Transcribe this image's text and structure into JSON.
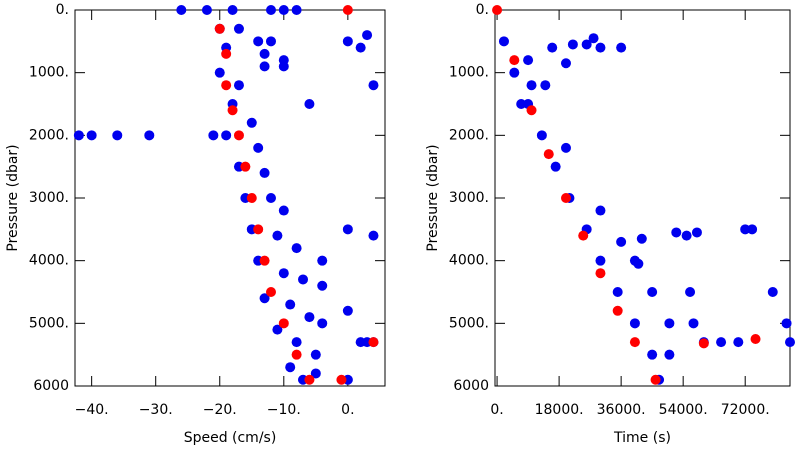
{
  "chart_data": [
    {
      "type": "scatter",
      "xlabel": "Speed (cm/s)",
      "ylabel": "Pressure (dbar)",
      "xlim": [
        -42.6,
        5.8
      ],
      "ylim": [
        6000,
        0
      ],
      "xticks": [
        {
          "value": -40,
          "label": "−40."
        },
        {
          "value": -30,
          "label": "−30."
        },
        {
          "value": -20,
          "label": "−20."
        },
        {
          "value": -10,
          "label": "−10."
        },
        {
          "value": 0,
          "label": "0."
        }
      ],
      "yticks": [
        {
          "value": 0,
          "label": "0."
        },
        {
          "value": 1000,
          "label": "1000."
        },
        {
          "value": 2000,
          "label": "2000."
        },
        {
          "value": 3000,
          "label": "3000."
        },
        {
          "value": 4000,
          "label": "4000."
        },
        {
          "value": 5000,
          "label": "5000."
        },
        6000
      ],
      "grid": false,
      "series": [
        {
          "color": "#0000ee",
          "x": [
            -26,
            -22,
            -18,
            -12,
            -10,
            -8,
            -20,
            -19,
            -17,
            -14,
            -13,
            -12,
            -10,
            -13,
            -10,
            -20,
            -17,
            -18,
            -15,
            -19,
            -14,
            -17,
            -13,
            -16,
            -12,
            -10,
            -15,
            -11,
            -8,
            -14,
            -10,
            -7,
            -13,
            -9,
            -6,
            -11,
            -8,
            -5,
            -9,
            -5,
            -7,
            -42,
            -40,
            -36,
            -31,
            -21,
            0,
            2,
            3,
            4,
            -6,
            -4,
            -4,
            0,
            -4,
            2,
            3,
            0,
            4,
            4,
            0
          ],
          "y": [
            0,
            0,
            0,
            0,
            0,
            0,
            300,
            600,
            300,
            500,
            700,
            500,
            800,
            900,
            900,
            1000,
            1200,
            1500,
            1800,
            2000,
            2200,
            2500,
            2600,
            3000,
            3000,
            3200,
            3500,
            3600,
            3800,
            4000,
            4200,
            4300,
            4600,
            4700,
            4900,
            5100,
            5300,
            5500,
            5700,
            5800,
            5900,
            2000,
            2000,
            2000,
            2000,
            2000,
            500,
            600,
            400,
            1200,
            1500,
            4000,
            4400,
            4800,
            5000,
            5300,
            5300,
            3500,
            3600,
            5300,
            5900
          ]
        },
        {
          "color": "#ff0000",
          "x": [
            0,
            -20,
            -19,
            -19,
            -18,
            -17,
            -16,
            -15,
            -14,
            -13,
            -12,
            -10,
            -8,
            -6,
            -1,
            4
          ],
          "y": [
            0,
            300,
            700,
            1200,
            1600,
            2000,
            2500,
            3000,
            3500,
            4000,
            4500,
            5000,
            5500,
            5900,
            5900,
            5300
          ]
        }
      ]
    },
    {
      "type": "scatter",
      "xlabel": "Time (s)",
      "ylabel": "Pressure (dbar)",
      "xlim": [
        -600,
        85000
      ],
      "ylim": [
        6000,
        0
      ],
      "xticks": [
        {
          "value": 0,
          "label": "0."
        },
        {
          "value": 18000,
          "label": "18000."
        },
        {
          "value": 36000,
          "label": "36000."
        },
        {
          "value": 54000,
          "label": "54000."
        },
        {
          "value": 72000,
          "label": "72000."
        }
      ],
      "yticks": [
        {
          "value": 0,
          "label": "0."
        },
        {
          "value": 1000,
          "label": "1000."
        },
        {
          "value": 2000,
          "label": "2000."
        },
        {
          "value": 3000,
          "label": "3000."
        },
        {
          "value": 4000,
          "label": "4000."
        },
        {
          "value": 5000,
          "label": "5000."
        },
        6000
      ],
      "grid": false,
      "series": [
        {
          "color": "#0000ee",
          "x": [
            2000,
            5000,
            9000,
            13000,
            17000,
            21000,
            26000,
            30000,
            35000,
            40000,
            45000,
            47000,
            10000,
            20000,
            30000,
            36000,
            40000,
            45000,
            50000,
            50000,
            7000,
            9000,
            14000,
            16000,
            20000,
            22000,
            26000,
            28000,
            30000,
            36000,
            41000,
            42000,
            52000,
            55000,
            58000,
            56000,
            57000,
            60000,
            65000,
            70000,
            72000,
            74000,
            80000,
            84000,
            85000
          ],
          "y": [
            500,
            1000,
            1500,
            2000,
            2500,
            3000,
            3500,
            4000,
            4500,
            5000,
            5500,
            5900,
            1200,
            2200,
            3200,
            3700,
            4000,
            4500,
            5000,
            5500,
            1500,
            800,
            1200,
            600,
            850,
            550,
            550,
            450,
            600,
            600,
            4050,
            3650,
            3550,
            3600,
            3550,
            4500,
            5000,
            5300,
            5300,
            5300,
            3500,
            3500,
            4500,
            5000,
            5300
          ]
        },
        {
          "color": "#ff0000",
          "x": [
            0,
            5000,
            10000,
            15000,
            20000,
            25000,
            30000,
            35000,
            40000,
            46000,
            60000,
            75000
          ],
          "y": [
            0,
            800,
            1600,
            2300,
            3000,
            3600,
            4200,
            4800,
            5300,
            5900,
            5320,
            5250
          ]
        }
      ]
    }
  ]
}
